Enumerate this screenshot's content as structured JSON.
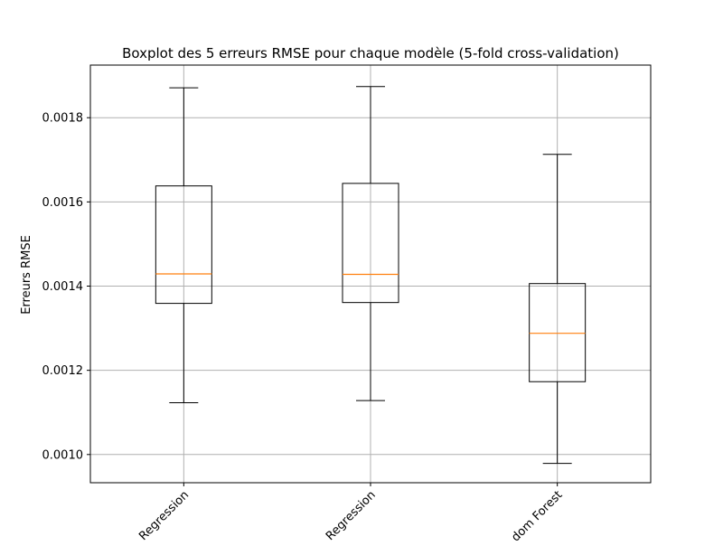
{
  "chart_data": {
    "type": "box",
    "title": "Boxplot des 5 erreurs RMSE pour chaque modèle (5-fold cross-validation)",
    "xlabel": "",
    "ylabel": "Erreurs RMSE",
    "ylim": [
      0.000933,
      0.001925
    ],
    "yticks": [
      0.001,
      0.0012,
      0.0014,
      0.0016,
      0.0018
    ],
    "ytick_labels": [
      "0.0010",
      "0.0012",
      "0.0014",
      "0.0016",
      "0.0018"
    ],
    "grid": true,
    "categories": [
      "Regression",
      "Regression",
      "dom Forest"
    ],
    "boxes": [
      {
        "whisker_low": 0.001123,
        "q1": 0.001359,
        "median": 0.001429,
        "q3": 0.001638,
        "whisker_high": 0.001871
      },
      {
        "whisker_low": 0.001128,
        "q1": 0.001361,
        "median": 0.001428,
        "q3": 0.001644,
        "whisker_high": 0.001874
      },
      {
        "whisker_low": 0.000979,
        "q1": 0.001173,
        "median": 0.001288,
        "q3": 0.001406,
        "whisker_high": 0.001713
      }
    ],
    "colors": {
      "box": "#000000",
      "median": "#ff7f0e",
      "grid": "#b0b0b0"
    }
  }
}
